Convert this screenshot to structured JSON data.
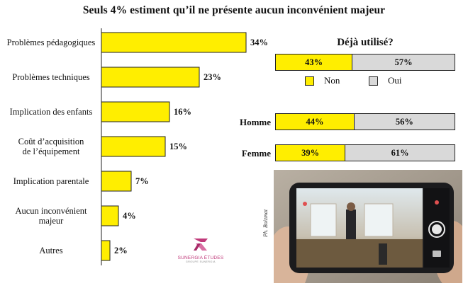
{
  "title": "Seuls 4% estiment qu’il ne présente aucun inconvénient majeur",
  "chart_data": [
    {
      "type": "bar",
      "orientation": "horizontal",
      "categories": [
        "Problèmes pédagogiques",
        "Problèmes techniques",
        "Implication des enfants",
        "Coût d’acquisition de l’équipement",
        "Implication parentale",
        "Aucun inconvénient majeur",
        "Autres"
      ],
      "category_lines": [
        [
          "Problèmes pédagogiques"
        ],
        [
          "Problèmes techniques"
        ],
        [
          "Implication des enfants"
        ],
        [
          "Coût d’acquisition",
          "de l’équipement"
        ],
        [
          "Implication parentale"
        ],
        [
          "Aucun inconvénient",
          "majeur"
        ],
        [
          "Autres"
        ]
      ],
      "values": [
        34,
        23,
        16,
        15,
        7,
        4,
        2
      ],
      "value_labels": [
        "34%",
        "23%",
        "16%",
        "15%",
        "7%",
        "4%",
        "2%"
      ],
      "unit": "%",
      "xlim": [
        0,
        34
      ],
      "grid": false,
      "bar_color": "#ffee00"
    },
    {
      "type": "bar",
      "orientation": "horizontal",
      "stacked": true,
      "title": "Déjà utilisé?",
      "categories": [
        "",
        "Homme",
        "Femme"
      ],
      "series": [
        {
          "name": "Non",
          "values": [
            43,
            44,
            39
          ],
          "labels": [
            "43%",
            "44%",
            "39%"
          ],
          "color": "#ffee00"
        },
        {
          "name": "Oui",
          "values": [
            57,
            56,
            61
          ],
          "labels": [
            "57%",
            "56%",
            "61%"
          ],
          "color": "#d9d9d9"
        }
      ],
      "xlim": [
        0,
        100
      ],
      "legend": "bottom"
    }
  ],
  "logo": {
    "text": "SUNERGIA ÉTUDES",
    "sub": "GROUPE SUNERGIA"
  },
  "photo_credit": "Ph. Boizmat",
  "colors": {
    "yellow": "#ffee00",
    "grey": "#d9d9d9",
    "logo": "#c0397a"
  }
}
